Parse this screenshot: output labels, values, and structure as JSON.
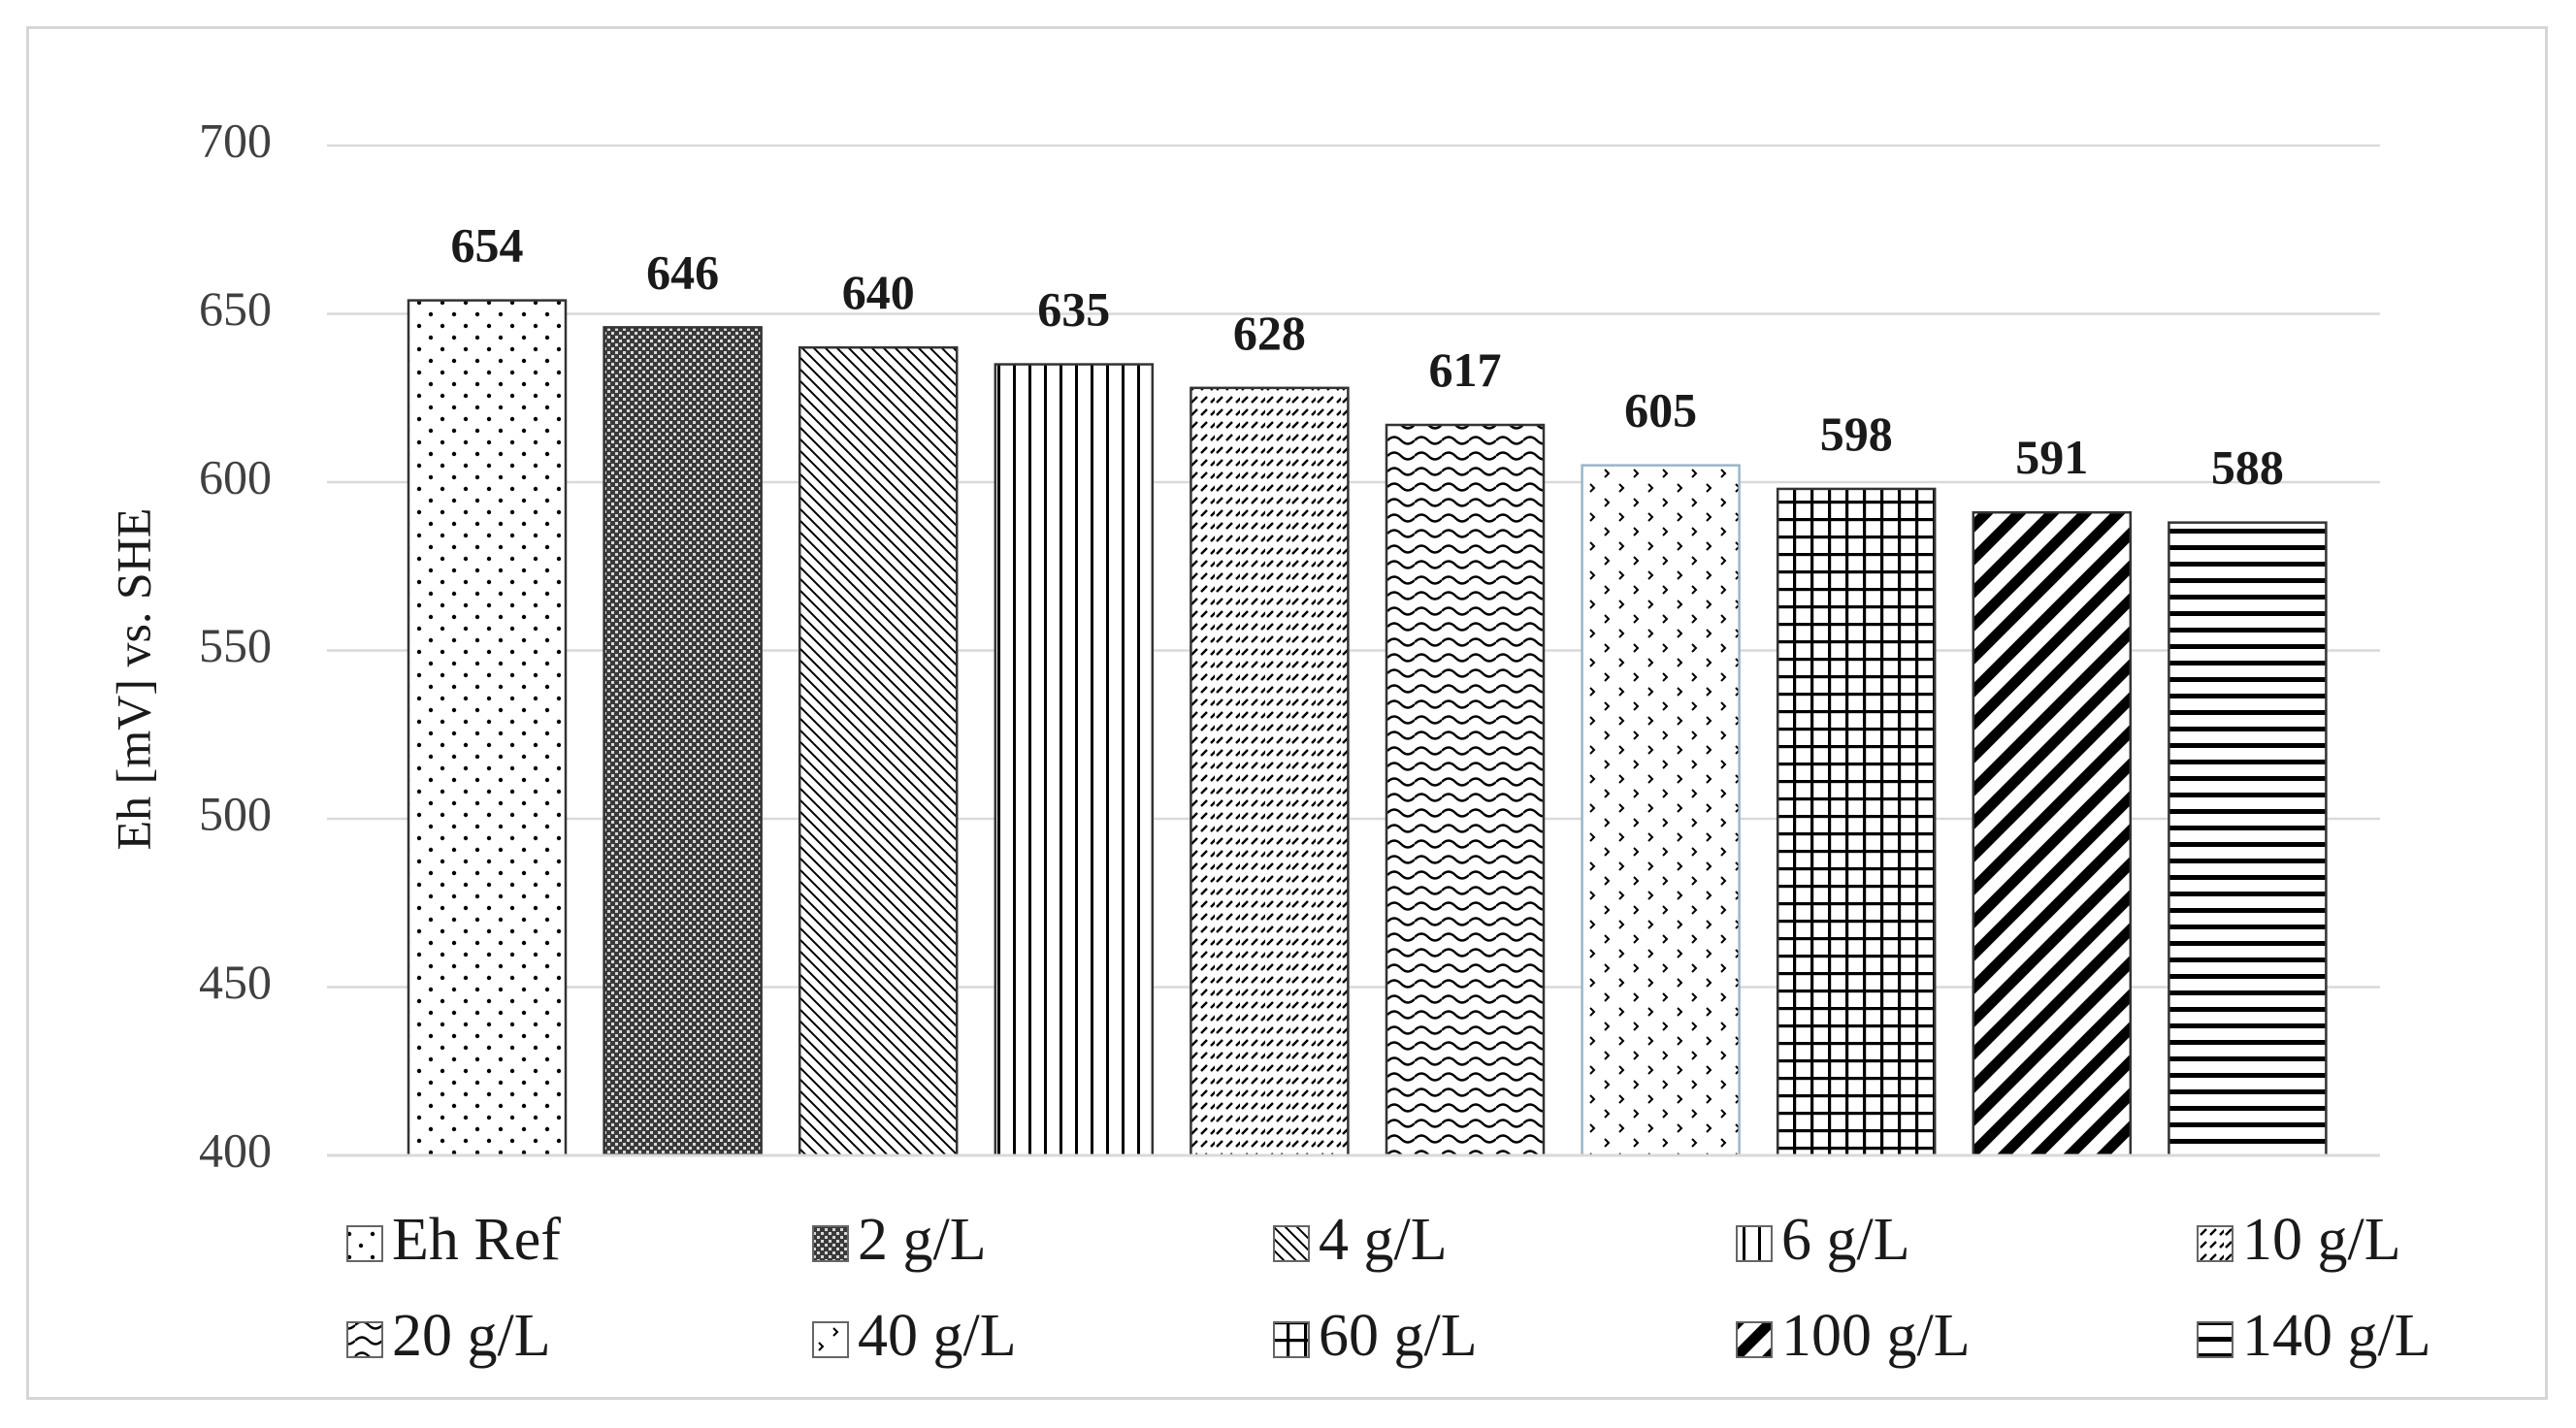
{
  "chart_data": {
    "type": "bar",
    "categories": [
      "Eh Ref",
      "2 g/L",
      "4 g/L",
      "6 g/L",
      "10 g/L",
      "20 g/L",
      "40 g/L",
      "60 g/L",
      "100 g/L",
      "140 g/L"
    ],
    "values": [
      654,
      646,
      640,
      635,
      628,
      617,
      605,
      598,
      591,
      588
    ],
    "data_labels": [
      "654",
      "646",
      "640",
      "635",
      "628",
      "617",
      "605",
      "598",
      "591",
      "588"
    ],
    "ylabel": "Eh [mV] vs. SHE",
    "xlabel": "",
    "ylim": [
      400,
      700
    ],
    "yticks": [
      400,
      450,
      500,
      550,
      600,
      650,
      700
    ],
    "ytick_labels": [
      "400",
      "450",
      "500",
      "550",
      "600",
      "650",
      "700"
    ],
    "grid": true,
    "legend_position": "bottom",
    "legend": [
      {
        "label": "Eh Ref",
        "pattern": "dots"
      },
      {
        "label": "2 g/L",
        "pattern": "dense-checker"
      },
      {
        "label": "4 g/L",
        "pattern": "diagonal-down"
      },
      {
        "label": "6 g/L",
        "pattern": "vertical-lines"
      },
      {
        "label": "10 g/L",
        "pattern": "dashed-diagonal"
      },
      {
        "label": "20 g/L",
        "pattern": "waves"
      },
      {
        "label": "40 g/L",
        "pattern": "chevrons"
      },
      {
        "label": "60 g/L",
        "pattern": "grid"
      },
      {
        "label": "100 g/L",
        "pattern": "wide-diagonal-up"
      },
      {
        "label": "140 g/L",
        "pattern": "horizontal-lines"
      }
    ],
    "colors": {
      "bar_stroke": "#000000",
      "gridline": "#d9d9d9",
      "tick_text": "#404040",
      "background": "#ffffff"
    }
  }
}
